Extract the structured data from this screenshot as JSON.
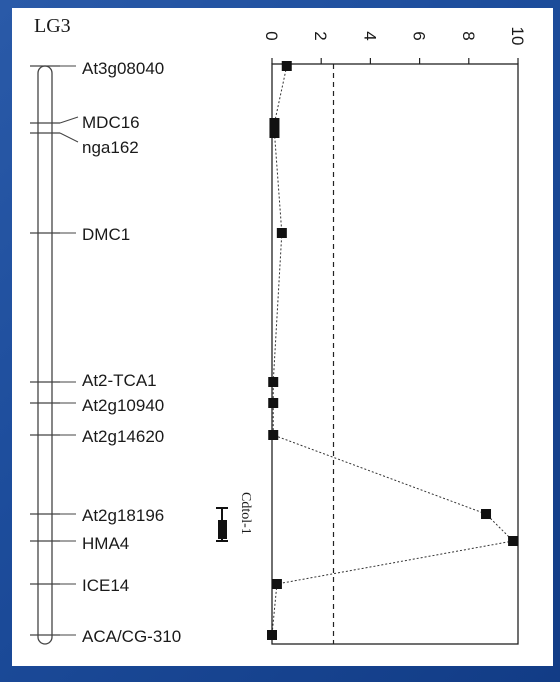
{
  "chart_data": {
    "type": "line",
    "title": "LG3",
    "markers": [
      "At3g08040",
      "MDC16",
      "nga162",
      "DMC1",
      "At2-TCA1",
      "At2g10940",
      "At2g14620",
      "At2g18196",
      "HMA4",
      "ICE14",
      "ACA/CG-310"
    ],
    "series": [
      {
        "values": [
          {
            "marker": "At3g08040",
            "lod": 0.6
          },
          {
            "marker": "MDC16",
            "lod": 0.1
          },
          {
            "marker": "nga162",
            "lod": 0.1
          },
          {
            "marker": "DMC1",
            "lod": 0.4
          },
          {
            "marker": "At2-TCA1",
            "lod": 0.05
          },
          {
            "marker": "At2g10940",
            "lod": 0.05
          },
          {
            "marker": "At2g14620",
            "lod": 0.05
          },
          {
            "marker": "At2g18196",
            "lod": 8.7
          },
          {
            "marker": "HMA4",
            "lod": 9.8
          },
          {
            "marker": "ICE14",
            "lod": 0.2
          },
          {
            "marker": "ACA/CG-310",
            "lod": 0.0
          }
        ]
      }
    ],
    "lod_axis": {
      "range": [
        0,
        10
      ],
      "ticks": [
        0,
        2,
        4,
        6,
        8,
        10
      ]
    },
    "threshold": 2.5,
    "qtl": {
      "label": "Cdtol-1",
      "start_marker": "At2g18196",
      "end_marker": "HMA4"
    }
  }
}
